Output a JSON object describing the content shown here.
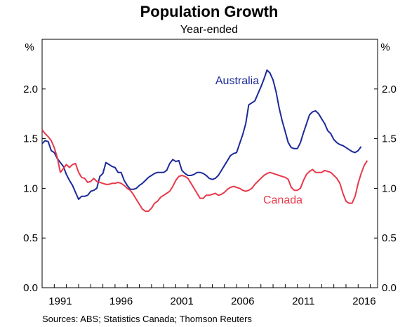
{
  "chart_data": {
    "type": "line",
    "title": "Population Growth",
    "subtitle": "Year-ended",
    "unit_left": "%",
    "unit_right": "%",
    "ylim": [
      0,
      2.5
    ],
    "yticks": [
      "0.0",
      "0.5",
      "1.0",
      "1.5",
      "2.0"
    ],
    "xlim": [
      1990,
      2017.6
    ],
    "xticks": [
      "1991",
      "1996",
      "2001",
      "2006",
      "2011",
      "2016"
    ],
    "grid": false,
    "source": "Sources:   ABS; Statistics Canada; Thomson Reuters",
    "colors": {
      "Australia": "#1c2a99",
      "Canada": "#e8394b"
    },
    "series": [
      {
        "name": "Australia",
        "points": [
          [
            1990.0,
            1.45
          ],
          [
            1990.25,
            1.48
          ],
          [
            1990.5,
            1.47
          ],
          [
            1990.75,
            1.38
          ],
          [
            1991.0,
            1.36
          ],
          [
            1991.25,
            1.3
          ],
          [
            1991.5,
            1.26
          ],
          [
            1991.75,
            1.22
          ],
          [
            1992.0,
            1.14
          ],
          [
            1992.25,
            1.08
          ],
          [
            1992.5,
            1.03
          ],
          [
            1992.75,
            0.96
          ],
          [
            1993.0,
            0.89
          ],
          [
            1993.25,
            0.92
          ],
          [
            1993.5,
            0.92
          ],
          [
            1993.75,
            0.93
          ],
          [
            1994.0,
            0.97
          ],
          [
            1994.25,
            0.98
          ],
          [
            1994.5,
            1.0
          ],
          [
            1994.75,
            1.12
          ],
          [
            1995.0,
            1.15
          ],
          [
            1995.25,
            1.26
          ],
          [
            1995.5,
            1.24
          ],
          [
            1995.75,
            1.22
          ],
          [
            1996.0,
            1.21
          ],
          [
            1996.25,
            1.16
          ],
          [
            1996.5,
            1.16
          ],
          [
            1996.75,
            1.08
          ],
          [
            1997.0,
            1.03
          ],
          [
            1997.25,
            0.99
          ],
          [
            1997.5,
            0.99
          ],
          [
            1997.75,
            1.0
          ],
          [
            1998.0,
            1.03
          ],
          [
            1998.25,
            1.05
          ],
          [
            1998.5,
            1.08
          ],
          [
            1998.75,
            1.11
          ],
          [
            1999.0,
            1.13
          ],
          [
            1999.25,
            1.15
          ],
          [
            1999.5,
            1.16
          ],
          [
            1999.75,
            1.16
          ],
          [
            2000.0,
            1.16
          ],
          [
            2000.25,
            1.18
          ],
          [
            2000.5,
            1.25
          ],
          [
            2000.75,
            1.29
          ],
          [
            2001.0,
            1.27
          ],
          [
            2001.25,
            1.28
          ],
          [
            2001.5,
            1.18
          ],
          [
            2001.75,
            1.15
          ],
          [
            2002.0,
            1.13
          ],
          [
            2002.25,
            1.13
          ],
          [
            2002.5,
            1.14
          ],
          [
            2002.75,
            1.16
          ],
          [
            2003.0,
            1.16
          ],
          [
            2003.25,
            1.15
          ],
          [
            2003.5,
            1.13
          ],
          [
            2003.75,
            1.1
          ],
          [
            2004.0,
            1.09
          ],
          [
            2004.25,
            1.1
          ],
          [
            2004.5,
            1.13
          ],
          [
            2004.75,
            1.18
          ],
          [
            2005.0,
            1.23
          ],
          [
            2005.25,
            1.28
          ],
          [
            2005.5,
            1.33
          ],
          [
            2005.75,
            1.35
          ],
          [
            2006.0,
            1.36
          ],
          [
            2006.25,
            1.45
          ],
          [
            2006.5,
            1.54
          ],
          [
            2006.75,
            1.65
          ],
          [
            2007.0,
            1.84
          ],
          [
            2007.25,
            1.86
          ],
          [
            2007.5,
            1.88
          ],
          [
            2007.75,
            1.95
          ],
          [
            2008.0,
            2.02
          ],
          [
            2008.25,
            2.1
          ],
          [
            2008.5,
            2.19
          ],
          [
            2008.75,
            2.16
          ],
          [
            2009.0,
            2.09
          ],
          [
            2009.25,
            1.97
          ],
          [
            2009.5,
            1.81
          ],
          [
            2009.75,
            1.68
          ],
          [
            2010.0,
            1.57
          ],
          [
            2010.25,
            1.46
          ],
          [
            2010.5,
            1.41
          ],
          [
            2010.75,
            1.4
          ],
          [
            2011.0,
            1.4
          ],
          [
            2011.25,
            1.46
          ],
          [
            2011.5,
            1.56
          ],
          [
            2011.75,
            1.65
          ],
          [
            2012.0,
            1.74
          ],
          [
            2012.25,
            1.77
          ],
          [
            2012.5,
            1.78
          ],
          [
            2012.75,
            1.75
          ],
          [
            2013.0,
            1.7
          ],
          [
            2013.25,
            1.65
          ],
          [
            2013.5,
            1.58
          ],
          [
            2013.75,
            1.55
          ],
          [
            2014.0,
            1.49
          ],
          [
            2014.25,
            1.46
          ],
          [
            2014.5,
            1.44
          ],
          [
            2014.75,
            1.43
          ],
          [
            2015.0,
            1.41
          ],
          [
            2015.25,
            1.39
          ],
          [
            2015.5,
            1.37
          ],
          [
            2015.75,
            1.36
          ],
          [
            2016.0,
            1.38
          ],
          [
            2016.25,
            1.42
          ]
        ]
      },
      {
        "name": "Canada",
        "points": [
          [
            1990.0,
            1.59
          ],
          [
            1990.25,
            1.55
          ],
          [
            1990.5,
            1.52
          ],
          [
            1990.75,
            1.48
          ],
          [
            1991.0,
            1.41
          ],
          [
            1991.25,
            1.31
          ],
          [
            1991.5,
            1.16
          ],
          [
            1991.75,
            1.2
          ],
          [
            1992.0,
            1.24
          ],
          [
            1992.25,
            1.21
          ],
          [
            1992.5,
            1.24
          ],
          [
            1992.75,
            1.25
          ],
          [
            1993.0,
            1.16
          ],
          [
            1993.25,
            1.11
          ],
          [
            1993.5,
            1.1
          ],
          [
            1993.75,
            1.06
          ],
          [
            1994.0,
            1.07
          ],
          [
            1994.25,
            1.1
          ],
          [
            1994.5,
            1.07
          ],
          [
            1994.75,
            1.06
          ],
          [
            1995.0,
            1.05
          ],
          [
            1995.25,
            1.04
          ],
          [
            1995.5,
            1.04
          ],
          [
            1995.75,
            1.05
          ],
          [
            1996.0,
            1.05
          ],
          [
            1996.25,
            1.06
          ],
          [
            1996.5,
            1.05
          ],
          [
            1996.75,
            1.03
          ],
          [
            1997.0,
            1.0
          ],
          [
            1997.25,
            0.98
          ],
          [
            1997.5,
            0.94
          ],
          [
            1997.75,
            0.89
          ],
          [
            1998.0,
            0.84
          ],
          [
            1998.25,
            0.79
          ],
          [
            1998.5,
            0.77
          ],
          [
            1998.75,
            0.77
          ],
          [
            1999.0,
            0.8
          ],
          [
            1999.25,
            0.85
          ],
          [
            1999.5,
            0.87
          ],
          [
            1999.75,
            0.91
          ],
          [
            2000.0,
            0.93
          ],
          [
            2000.25,
            0.95
          ],
          [
            2000.5,
            0.97
          ],
          [
            2000.75,
            1.02
          ],
          [
            2001.0,
            1.08
          ],
          [
            2001.25,
            1.12
          ],
          [
            2001.5,
            1.13
          ],
          [
            2001.75,
            1.12
          ],
          [
            2002.0,
            1.1
          ],
          [
            2002.25,
            1.05
          ],
          [
            2002.5,
            1.0
          ],
          [
            2002.75,
            0.95
          ],
          [
            2003.0,
            0.9
          ],
          [
            2003.25,
            0.9
          ],
          [
            2003.5,
            0.93
          ],
          [
            2003.75,
            0.93
          ],
          [
            2004.0,
            0.94
          ],
          [
            2004.25,
            0.95
          ],
          [
            2004.5,
            0.93
          ],
          [
            2004.75,
            0.94
          ],
          [
            2005.0,
            0.96
          ],
          [
            2005.25,
            0.99
          ],
          [
            2005.5,
            1.01
          ],
          [
            2005.75,
            1.02
          ],
          [
            2006.0,
            1.01
          ],
          [
            2006.25,
            1.0
          ],
          [
            2006.5,
            0.98
          ],
          [
            2006.75,
            0.97
          ],
          [
            2007.0,
            0.98
          ],
          [
            2007.25,
            1.0
          ],
          [
            2007.5,
            1.04
          ],
          [
            2007.75,
            1.07
          ],
          [
            2008.0,
            1.1
          ],
          [
            2008.25,
            1.13
          ],
          [
            2008.5,
            1.15
          ],
          [
            2008.75,
            1.16
          ],
          [
            2009.0,
            1.15
          ],
          [
            2009.25,
            1.14
          ],
          [
            2009.5,
            1.13
          ],
          [
            2009.75,
            1.12
          ],
          [
            2010.0,
            1.11
          ],
          [
            2010.25,
            1.09
          ],
          [
            2010.5,
            1.01
          ],
          [
            2010.75,
            0.98
          ],
          [
            2011.0,
            0.98
          ],
          [
            2011.25,
            1.0
          ],
          [
            2011.5,
            1.08
          ],
          [
            2011.75,
            1.14
          ],
          [
            2012.0,
            1.17
          ],
          [
            2012.25,
            1.19
          ],
          [
            2012.5,
            1.16
          ],
          [
            2012.75,
            1.16
          ],
          [
            2013.0,
            1.16
          ],
          [
            2013.25,
            1.18
          ],
          [
            2013.5,
            1.17
          ],
          [
            2013.75,
            1.16
          ],
          [
            2014.0,
            1.13
          ],
          [
            2014.25,
            1.1
          ],
          [
            2014.5,
            1.05
          ],
          [
            2014.75,
            0.95
          ],
          [
            2015.0,
            0.87
          ],
          [
            2015.25,
            0.85
          ],
          [
            2015.5,
            0.85
          ],
          [
            2015.75,
            0.92
          ],
          [
            2016.0,
            1.05
          ],
          [
            2016.25,
            1.15
          ],
          [
            2016.5,
            1.23
          ],
          [
            2016.75,
            1.28
          ]
        ]
      }
    ]
  }
}
